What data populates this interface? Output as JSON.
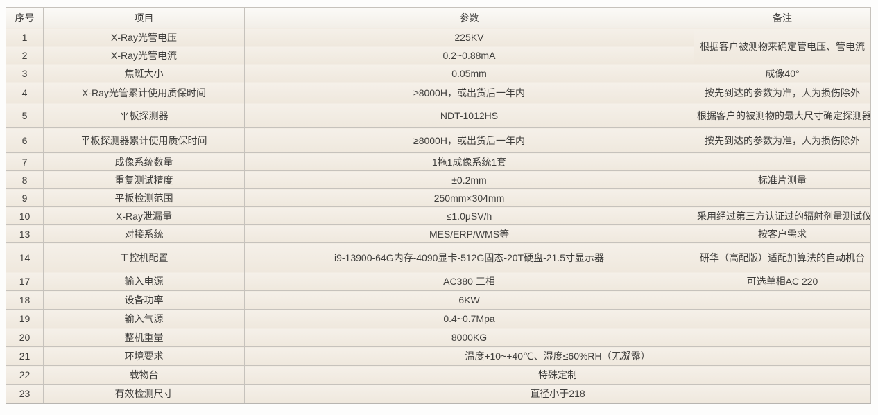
{
  "table": {
    "headers": [
      "序号",
      "项目",
      "参数",
      "备注"
    ],
    "rows": [
      {
        "no": "1",
        "item": "X-Ray光管电压",
        "param": "225KV",
        "remark": "根据客户被测物来确定管电压、管电流",
        "remark_rowspan": 2
      },
      {
        "no": "2",
        "item": "X-Ray光管电流",
        "param": "0.2~0.88mA",
        "remark": null
      },
      {
        "no": "3",
        "item": "焦斑大小",
        "param": "0.05mm",
        "remark": "成像40°"
      },
      {
        "no": "4",
        "item": "X-Ray光管累计使用质保时间",
        "param": "≥8000H，或出货后一年内",
        "remark": "按先到达的参数为准，人为损伤除外"
      },
      {
        "no": "5",
        "item": "平板探测器",
        "param": "NDT-1012HS",
        "remark": "根据客户的被测物的最大尺寸确定探测器尺寸"
      },
      {
        "no": "6",
        "item": "平板探测器累计使用质保时间",
        "param": "≥8000H，或出货后一年内",
        "remark": "按先到达的参数为准，人为损伤除外"
      },
      {
        "no": "7",
        "item": "成像系统数量",
        "param": "1拖1成像系统1套",
        "remark": ""
      },
      {
        "no": "8",
        "item": "重复测试精度",
        "param": "±0.2mm",
        "remark": "标准片测量"
      },
      {
        "no": "9",
        "item": "平板检测范围",
        "param": "250mm×304mm",
        "remark": ""
      },
      {
        "no": "10",
        "item": "X-Ray泄漏量",
        "param": "≤1.0μSV/h",
        "remark": "采用经过第三方认证过的辐射剂量测试仪"
      },
      {
        "no": "13",
        "item": "对接系统",
        "param": "MES/ERP/WMS等",
        "remark": "按客户需求"
      },
      {
        "no": "14",
        "item": "工控机配置",
        "param": "i9-13900-64G内存-4090显卡-512G固态-20T硬盘-21.5寸显示器",
        "remark": "研华（高配版）适配加算法的自动机台"
      },
      {
        "no": "17",
        "item": "输入电源",
        "param": "AC380 三相",
        "remark": "可选单相AC 220"
      },
      {
        "no": "18",
        "item": "设备功率",
        "param": "6KW",
        "remark": ""
      },
      {
        "no": "19",
        "item": "输入气源",
        "param": "0.4~0.7Mpa",
        "remark": ""
      },
      {
        "no": "20",
        "item": "整机重量",
        "param": "8000KG",
        "remark": ""
      },
      {
        "no": "21",
        "item": "环境要求",
        "param": "温度+10~+40℃、湿度≤60%RH（无凝露）",
        "param_colspan": 2
      },
      {
        "no": "22",
        "item": "载物台",
        "param": "特殊定制",
        "param_colspan": 2
      },
      {
        "no": "23",
        "item": "有效检测尺寸",
        "param": "直径小于218",
        "param_colspan": 2
      }
    ],
    "colors": {
      "row_bg_top": "#f5f0e9",
      "row_bg_bottom": "#efe8dd",
      "header_bg_top": "#fbfaf7",
      "header_bg_bottom": "#f2eee7",
      "border": "#c6c2bc",
      "text": "#3f3e3c"
    }
  }
}
